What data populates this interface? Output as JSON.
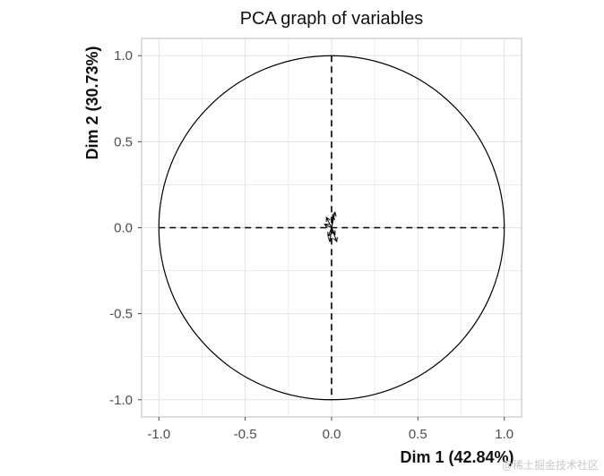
{
  "chart_data": {
    "type": "scatter",
    "title": "PCA graph of variables",
    "xlabel": "Dim 1 (42.84%)",
    "ylabel": "Dim 2 (30.73%)",
    "xlim": [
      -1.1,
      1.1
    ],
    "ylim": [
      -1.1,
      1.1
    ],
    "xticks": [
      "-1.0",
      "-0.5",
      "0.0",
      "0.5",
      "1.0"
    ],
    "yticks": [
      "1.0",
      "0.5",
      "0.0",
      "-0.5",
      "-1.0"
    ],
    "tick_values": [
      -1.0,
      -0.5,
      0.0,
      0.5,
      1.0
    ],
    "grid": true,
    "reference_lines": {
      "x": 0,
      "y": 0,
      "style": "dashed"
    },
    "unit_circle": {
      "radius": 1.0
    },
    "vectors": [
      {
        "x": 0.02,
        "y": 0.09
      },
      {
        "x": -0.03,
        "y": 0.06
      },
      {
        "x": 0.03,
        "y": -0.08
      },
      {
        "x": -0.02,
        "y": -0.05
      },
      {
        "x": 0.01,
        "y": 0.07
      },
      {
        "x": -0.04,
        "y": 0.02
      },
      {
        "x": 0.02,
        "y": -0.04
      },
      {
        "x": -0.01,
        "y": -0.08
      }
    ],
    "colors": {
      "line": "#000000",
      "grid": "#e2e2e2",
      "panel_border": "#bdbdbd"
    }
  },
  "watermark": "@稀土掘金技术社区"
}
